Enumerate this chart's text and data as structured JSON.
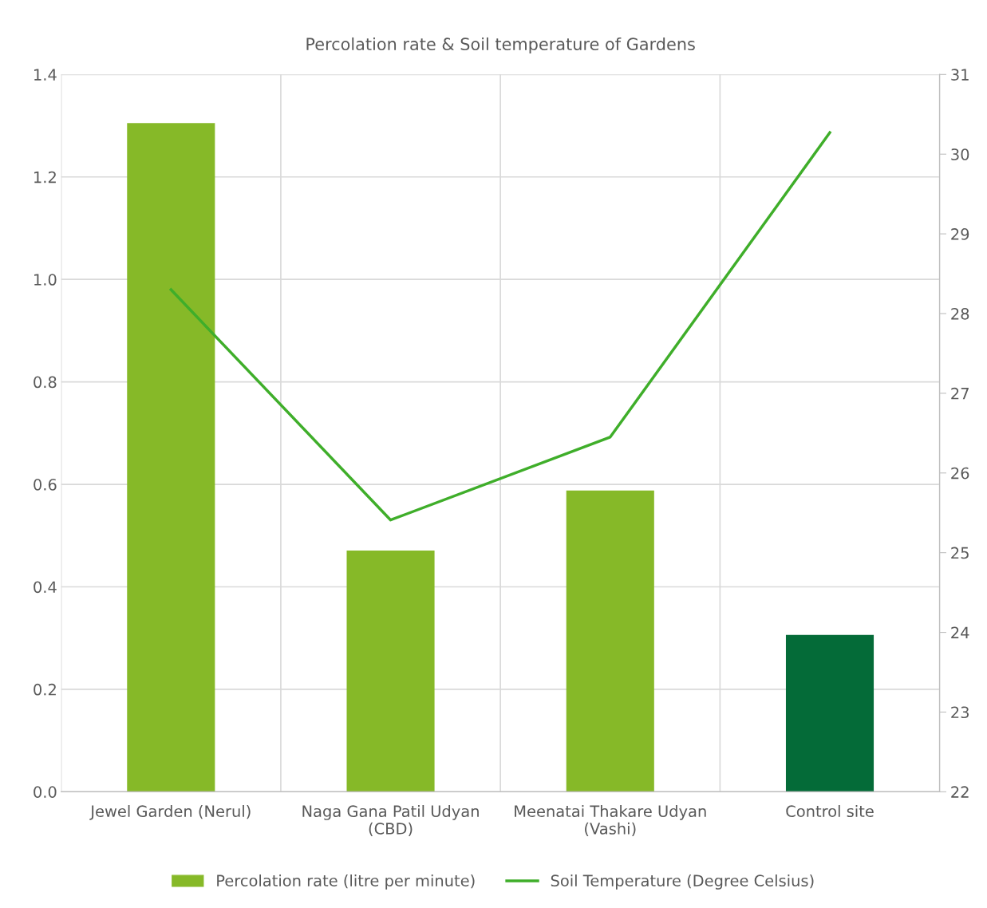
{
  "chart_data": {
    "type": "bar",
    "title": "Percolation rate & Soil temperature of Gardens",
    "categories": [
      "Jewel Garden (Nerul)",
      "Naga Gana Patil Udyan\n(CBD)",
      "Meenatai Thakare Udyan\n(Vashi)",
      "Control site"
    ],
    "series": [
      {
        "name": "Percolation rate (litre per minute)",
        "color": "#86b928",
        "colors": [
          "#86b928",
          "#86b928",
          "#86b928",
          "#046b38"
        ],
        "values": [
          1.305,
          0.471,
          0.588,
          0.306
        ]
      },
      {
        "name": "Soil Temperature (Degree Celsius)",
        "type": "line",
        "axis": "y2",
        "color": "#3fae2a",
        "values": [
          28.3,
          25.41,
          26.45,
          30.27
        ]
      }
    ],
    "ylim": [
      0,
      1.4
    ],
    "yticks": [
      {
        "value": 0,
        "label": "0.0"
      },
      {
        "value": 0.2,
        "label": "0.2"
      },
      {
        "value": 0.4,
        "label": "0.4"
      },
      {
        "value": 0.6,
        "label": "0.6"
      },
      {
        "value": 0.8,
        "label": "0.8"
      },
      {
        "value": 1.0,
        "label": "1.0"
      },
      {
        "value": 1.2,
        "label": "1.2"
      },
      {
        "value": 1.4,
        "label": "1.4"
      }
    ],
    "y2lim": [
      22,
      31
    ],
    "y2ticks": [
      22,
      23,
      24,
      25,
      26,
      27,
      28,
      29,
      30,
      31
    ],
    "grid": true,
    "legend": "bottom",
    "marker": "none",
    "line_style": "solid"
  }
}
